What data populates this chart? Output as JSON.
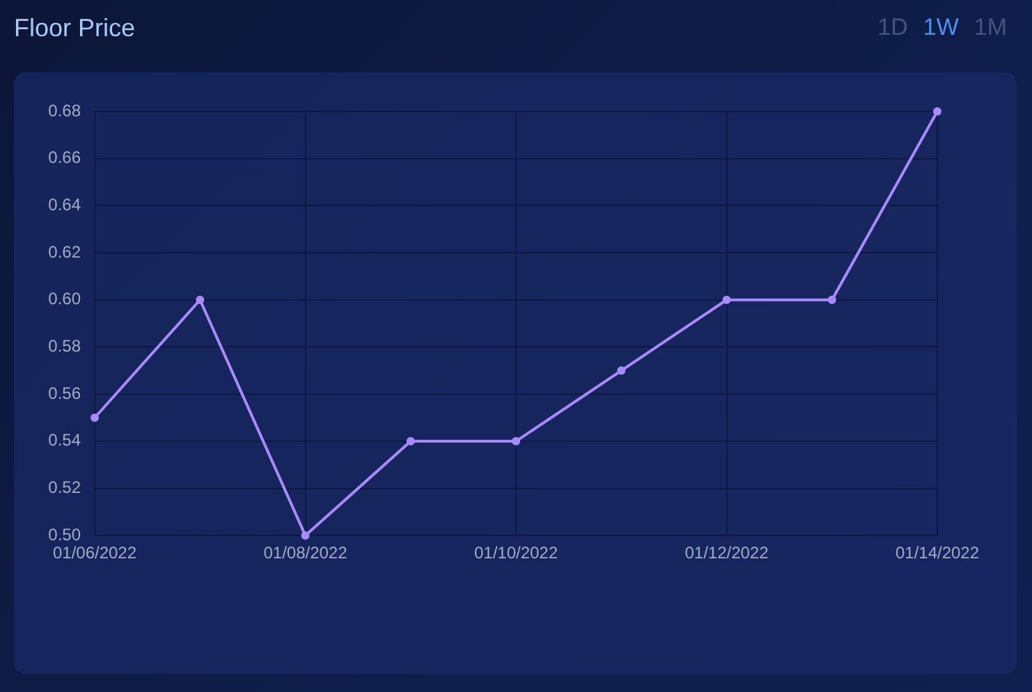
{
  "chart_data": {
    "type": "line",
    "title": "Floor Price",
    "categories": [
      "01/06/2022",
      null,
      "01/08/2022",
      null,
      "01/10/2022",
      null,
      "01/12/2022",
      null,
      "01/14/2022"
    ],
    "series": [
      {
        "color": "#a78bfa",
        "values": [
          0.55,
          0.6,
          0.5,
          0.54,
          0.54,
          0.57,
          0.6,
          0.6,
          0.68
        ]
      }
    ],
    "ylim": [
      0.5,
      0.68
    ],
    "yticks": [
      {
        "value": 0.5,
        "label": "0.50"
      },
      0.52,
      0.54,
      0.56,
      0.58,
      {
        "value": 0.6,
        "label": "0.60"
      },
      0.62,
      0.64,
      0.66,
      0.68
    ],
    "grid": true,
    "marker": "circle",
    "annotations": [
      "1D",
      "1W",
      "1M"
    ]
  }
}
